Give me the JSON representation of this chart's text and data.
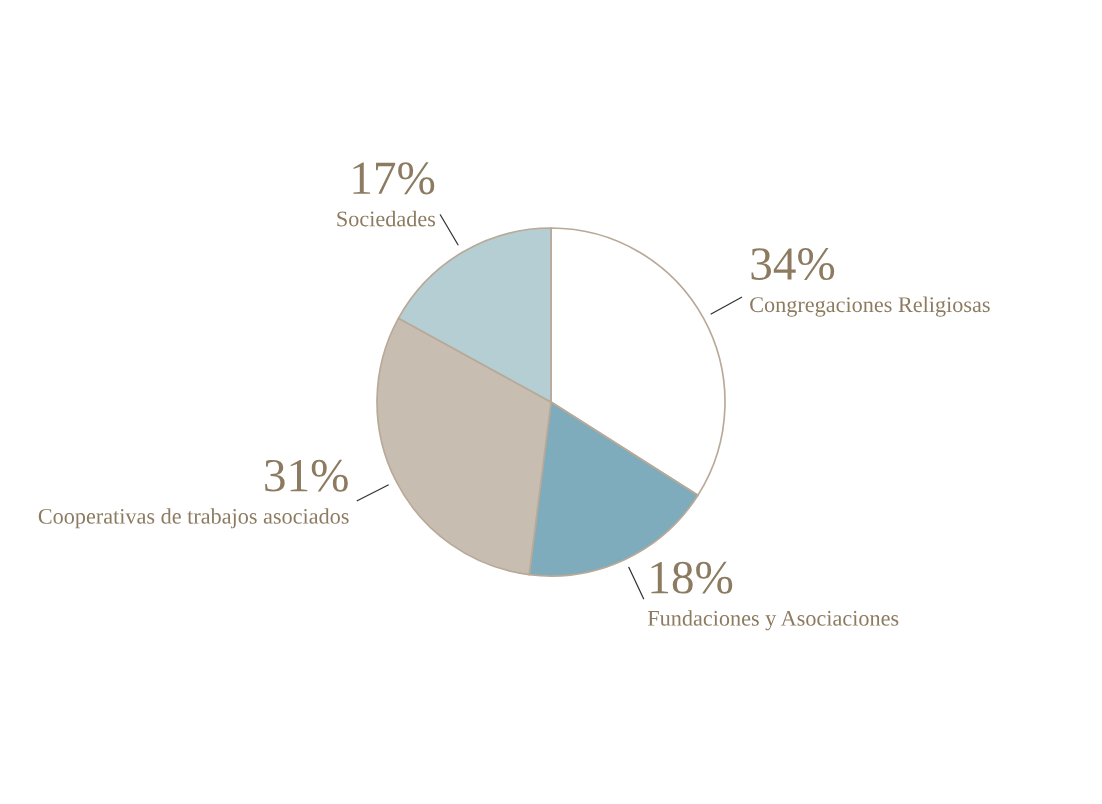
{
  "chart_data": {
    "type": "pie",
    "categories": [
      "Congregaciones Religiosas",
      "Fundaciones y Asociaciones",
      "Cooperativas de trabajos asociados",
      "Sociedades"
    ],
    "values": [
      34,
      18,
      31,
      17
    ],
    "value_labels": [
      "34%",
      "18%",
      "31%",
      "17%"
    ],
    "colors": [
      "#ffffff",
      "#7facbc",
      "#c8bdb1",
      "#b4ced3"
    ],
    "legend": false
  }
}
